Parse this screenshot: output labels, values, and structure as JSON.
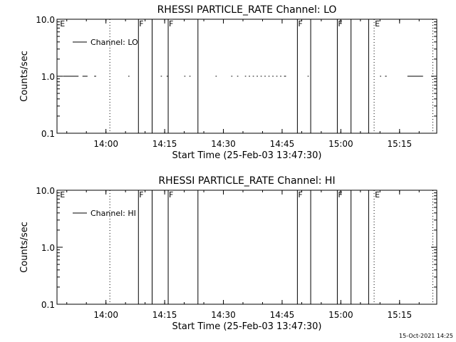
{
  "footer_timestamp": "15-Oct-2021 14:25",
  "chart_data": [
    {
      "type": "line",
      "title": "RHESSI PARTICLE_RATE Channel: LO",
      "xlabel": "Start Time (25-Feb-03 13:47:30)",
      "ylabel": "Counts/sec",
      "x_unit": "minutes after 13:47:30",
      "xlim": [
        0,
        97
      ],
      "ylim": [
        0.1,
        10.0
      ],
      "yscale": "log",
      "y_tick_labels": [
        "0.1",
        "1.0",
        "10.0"
      ],
      "x_ticks": [
        {
          "label": "14:00",
          "minute": 12.5
        },
        {
          "label": "14:15",
          "minute": 27.5
        },
        {
          "label": "14:30",
          "minute": 42.5
        },
        {
          "label": "14:45",
          "minute": 57.5
        },
        {
          "label": "15:00",
          "minute": 72.5
        },
        {
          "label": "15:15",
          "minute": 87.5
        }
      ],
      "legend": {
        "position": "top-left",
        "label": "Channel: LO"
      },
      "grid": false,
      "series": [
        {
          "name": "Channel: LO",
          "segments": [
            [
              1.5,
              5.5
            ],
            [
              6.5,
              7.8
            ],
            [
              9.5,
              10.0
            ],
            [
              18.2,
              18.5
            ],
            [
              26.5,
              26.8
            ],
            [
              28.0,
              28.3
            ],
            [
              32.5,
              32.8
            ],
            [
              33.8,
              34.1
            ],
            [
              40.5,
              40.8
            ],
            [
              44.5,
              44.8
            ],
            [
              46.0,
              46.3
            ],
            [
              48.0,
              48.3
            ],
            [
              49.0,
              49.3
            ],
            [
              50.0,
              50.3
            ],
            [
              51.0,
              51.3
            ],
            [
              52.0,
              52.3
            ],
            [
              53.0,
              53.3
            ],
            [
              54.0,
              54.3
            ],
            [
              55.0,
              55.3
            ],
            [
              56.0,
              56.3
            ],
            [
              57.0,
              57.3
            ],
            [
              58.0,
              58.5
            ],
            [
              64.0,
              64.3
            ],
            [
              82.5,
              82.8
            ],
            [
              83.8,
              84.2
            ],
            [
              89.5,
              93.5
            ]
          ],
          "value": 1.0
        }
      ],
      "markers": [
        {
          "minute": 0.6,
          "label": "E",
          "style": "none"
        },
        {
          "minute": 13.5,
          "label": "",
          "style": "dotted"
        },
        {
          "minute": 20.8,
          "label": "F",
          "style": "solid"
        },
        {
          "minute": 24.3,
          "label": "",
          "style": "solid"
        },
        {
          "minute": 28.4,
          "label": "F",
          "style": "solid"
        },
        {
          "minute": 36.0,
          "label": "",
          "style": "solid"
        },
        {
          "minute": 61.4,
          "label": "F",
          "style": "solid"
        },
        {
          "minute": 64.8,
          "label": "",
          "style": "solid"
        },
        {
          "minute": 71.6,
          "label": "F",
          "style": "solid"
        },
        {
          "minute": 75.1,
          "label": "",
          "style": "solid"
        },
        {
          "minute": 79.6,
          "label": "",
          "style": "solid"
        },
        {
          "minute": 81.0,
          "label": "E",
          "style": "dotted"
        },
        {
          "minute": 96.0,
          "label": "",
          "style": "dotted"
        }
      ]
    },
    {
      "type": "line",
      "title": "RHESSI PARTICLE_RATE Channel: HI",
      "xlabel": "Start Time (25-Feb-03 13:47:30)",
      "ylabel": "Counts/sec",
      "x_unit": "minutes after 13:47:30",
      "xlim": [
        0,
        97
      ],
      "ylim": [
        0.1,
        10.0
      ],
      "yscale": "log",
      "y_tick_labels": [
        "0.1",
        "1.0",
        "10.0"
      ],
      "x_ticks": [
        {
          "label": "14:00",
          "minute": 12.5
        },
        {
          "label": "14:15",
          "minute": 27.5
        },
        {
          "label": "14:30",
          "minute": 42.5
        },
        {
          "label": "14:45",
          "minute": 57.5
        },
        {
          "label": "15:00",
          "minute": 72.5
        },
        {
          "label": "15:15",
          "minute": 87.5
        }
      ],
      "legend": {
        "position": "top-left",
        "label": "Channel: HI"
      },
      "grid": false,
      "series": [
        {
          "name": "Channel: HI",
          "segments": [],
          "value": null
        }
      ],
      "markers": [
        {
          "minute": 0.6,
          "label": "E",
          "style": "none"
        },
        {
          "minute": 13.5,
          "label": "",
          "style": "dotted"
        },
        {
          "minute": 20.8,
          "label": "F",
          "style": "solid"
        },
        {
          "minute": 24.3,
          "label": "",
          "style": "solid"
        },
        {
          "minute": 28.4,
          "label": "F",
          "style": "solid"
        },
        {
          "minute": 36.0,
          "label": "",
          "style": "solid"
        },
        {
          "minute": 61.4,
          "label": "F",
          "style": "solid"
        },
        {
          "minute": 64.8,
          "label": "",
          "style": "solid"
        },
        {
          "minute": 71.6,
          "label": "F",
          "style": "solid"
        },
        {
          "minute": 75.1,
          "label": "",
          "style": "solid"
        },
        {
          "minute": 79.6,
          "label": "",
          "style": "solid"
        },
        {
          "minute": 81.0,
          "label": "E",
          "style": "dotted"
        },
        {
          "minute": 96.0,
          "label": "",
          "style": "dotted"
        }
      ]
    }
  ]
}
